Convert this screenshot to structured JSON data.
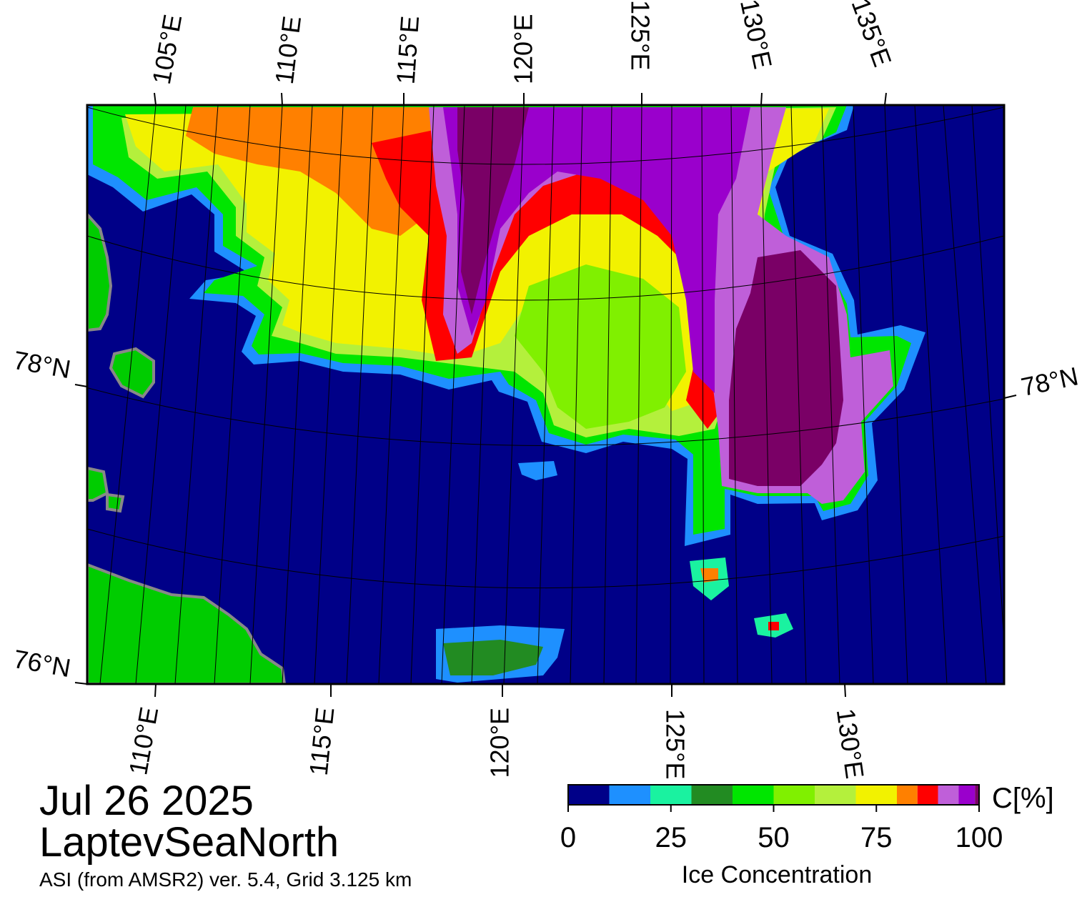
{
  "map": {
    "top_lon_labels": [
      "105°E",
      "110°E",
      "115°E",
      "120°E",
      "125°E",
      "130°E",
      "135°E"
    ],
    "bottom_lon_labels": [
      "110°E",
      "115°E",
      "120°E",
      "125°E",
      "130°E"
    ],
    "left_lat_labels": [
      "78°N",
      "76°N"
    ],
    "right_lat_labels": [
      "78°N"
    ]
  },
  "title": {
    "date": "Jul 26 2025",
    "region": "LaptevSeaNorth",
    "source": "ASI (from AMSR2) ver. 5.4,  Grid 3.125 km"
  },
  "colorbar": {
    "title": "Ice Concentration",
    "unit": "C[%]",
    "xlim": [
      0,
      100
    ],
    "bins": [
      0,
      10,
      20,
      30,
      40,
      50,
      60,
      70,
      80,
      85,
      90,
      95,
      99,
      100
    ],
    "colors": [
      "#000088",
      "#1e90ff",
      "#1af2a0",
      "#228b22",
      "#00e600",
      "#80f000",
      "#b4f03c",
      "#f2f200",
      "#ff8000",
      "#ff0000",
      "#bf5fd9",
      "#9a00cc",
      "#7a0066"
    ],
    "ticks": [
      0,
      25,
      50,
      75,
      100
    ]
  }
}
